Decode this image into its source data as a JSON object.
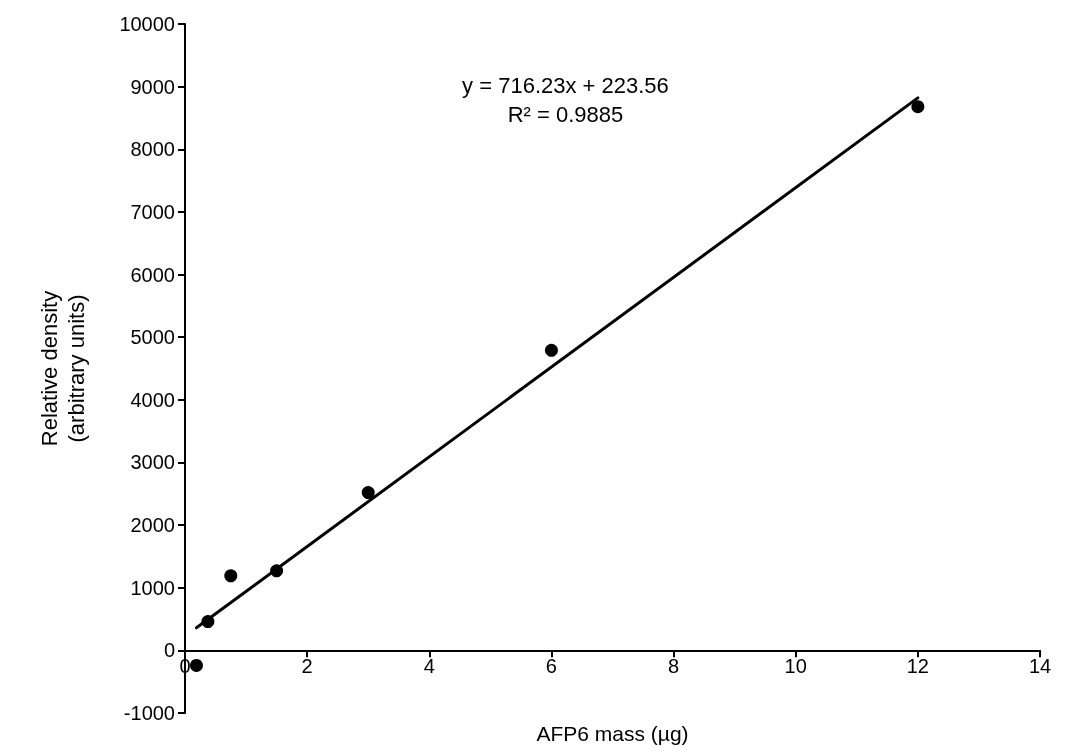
{
  "chart_data": {
    "type": "scatter",
    "xlabel": "AFP6 mass (µg)",
    "ylabel": "Relative density\n(arbitrary units)",
    "xlim": [
      0,
      14
    ],
    "xticks": [
      0,
      2,
      4,
      6,
      8,
      10,
      12,
      14
    ],
    "ylim": [
      -1000,
      10000
    ],
    "yticks": [
      -1000,
      0,
      1000,
      2000,
      3000,
      4000,
      5000,
      6000,
      7000,
      8000,
      9000,
      10000
    ],
    "grid": false,
    "marker": "circle",
    "series": [
      {
        "type": "scatter",
        "color": "#000000",
        "x": [
          0.1875,
          0.375,
          0.75,
          1.5,
          3,
          6,
          12
        ],
        "values": [
          -240,
          460,
          1190,
          1270,
          2520,
          4790,
          8680
        ]
      },
      {
        "type": "line",
        "color": "#000000",
        "marker": "none",
        "line_style": "solid",
        "x": [
          0.1875,
          12
        ],
        "values": [
          360,
          8820
        ]
      }
    ],
    "annotations": [
      "y = 716.23x + 223.56",
      "R² = 0.9885"
    ]
  }
}
